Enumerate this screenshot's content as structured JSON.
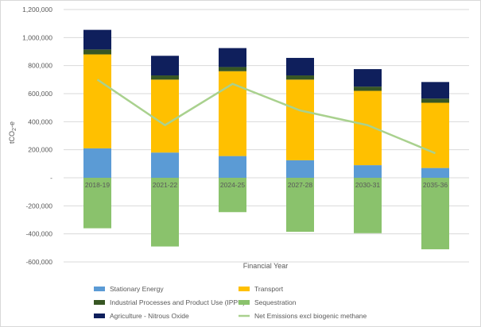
{
  "chart_data": {
    "type": "bar",
    "stacked": true,
    "categories": [
      "2018-19",
      "2021-22",
      "2024-25",
      "2027-28",
      "2030-31",
      "2035-36"
    ],
    "xlabel": "Financial Year",
    "ylabel": "tCO2e",
    "ylabel_parts": [
      "tCO",
      "2",
      "-e"
    ],
    "ylim": [
      -600000,
      1200000
    ],
    "yticks": [
      -600000,
      -400000,
      -200000,
      0,
      200000,
      400000,
      600000,
      800000,
      1000000,
      1200000
    ],
    "ytick_labels": [
      "-600,000",
      "-400,000",
      "-200,000",
      "-",
      "200,000",
      "400,000",
      "600,000",
      "800,000",
      "1,000,000",
      "1,200,000"
    ],
    "grid": true,
    "legend_position": "bottom",
    "series": [
      {
        "name": "Stationary Energy",
        "kind": "bar",
        "color": "#5b9bd5",
        "values": [
          210000,
          180000,
          155000,
          125000,
          90000,
          70000
        ]
      },
      {
        "name": "Transport",
        "kind": "bar",
        "color": "#ffc000",
        "values": [
          670000,
          520000,
          605000,
          575000,
          530000,
          465000
        ]
      },
      {
        "name": "Industrial Processes and Product Use (IPPU)",
        "kind": "bar",
        "color": "#375623",
        "values": [
          35000,
          30000,
          30000,
          30000,
          30000,
          30000
        ]
      },
      {
        "name": "Sequestration",
        "kind": "bar",
        "color": "#8ac26c",
        "values": [
          -360000,
          -490000,
          -245000,
          -385000,
          -395000,
          -510000
        ]
      },
      {
        "name": "Agriculture - Nitrous Oxide",
        "kind": "bar",
        "color": "#0f1f5c",
        "values": [
          140000,
          140000,
          135000,
          125000,
          125000,
          118000
        ]
      },
      {
        "name": "Net Emissions excl biogenic methane",
        "kind": "line",
        "color": "#a9d18e",
        "values": [
          700000,
          375000,
          670000,
          480000,
          375000,
          175000
        ]
      }
    ]
  }
}
